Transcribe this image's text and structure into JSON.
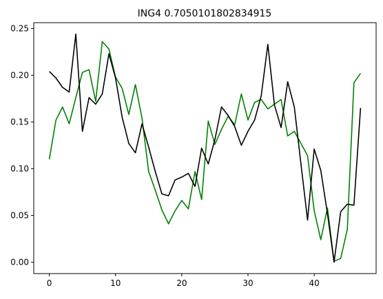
{
  "chart_data": {
    "type": "line",
    "title": "ING4 0.7050101802834915",
    "xlabel": "",
    "ylabel": "",
    "xlim": [
      -2.35,
      49.35
    ],
    "ylim": [
      -0.0122,
      0.2562
    ],
    "xticks": [
      0,
      10,
      20,
      30,
      40
    ],
    "yticks": [
      0.0,
      0.05,
      0.1,
      0.15,
      0.2,
      0.25
    ],
    "ytick_labels": [
      "0.00",
      "0.05",
      "0.10",
      "0.15",
      "0.20",
      "0.25"
    ],
    "grid": false,
    "x": [
      0,
      1,
      2,
      3,
      4,
      5,
      6,
      7,
      8,
      9,
      10,
      11,
      12,
      13,
      14,
      15,
      16,
      17,
      18,
      19,
      20,
      21,
      22,
      23,
      24,
      25,
      26,
      27,
      28,
      29,
      30,
      31,
      32,
      33,
      34,
      35,
      36,
      37,
      38,
      39,
      40,
      41,
      42,
      43,
      44,
      45,
      46,
      47
    ],
    "series": [
      {
        "color": "#008000",
        "values": [
          0.11,
          0.152,
          0.166,
          0.148,
          0.176,
          0.203,
          0.206,
          0.172,
          0.236,
          0.228,
          0.198,
          0.186,
          0.158,
          0.19,
          0.154,
          0.097,
          0.077,
          0.056,
          0.041,
          0.055,
          0.066,
          0.057,
          0.097,
          0.067,
          0.151,
          0.126,
          0.142,
          0.156,
          0.147,
          0.18,
          0.152,
          0.171,
          0.174,
          0.164,
          0.169,
          0.174,
          0.135,
          0.14,
          0.127,
          0.114,
          0.055,
          0.024,
          0.058,
          0.001,
          0.004,
          0.035,
          0.192,
          0.202
        ]
      },
      {
        "color": "#000000",
        "values": [
          0.204,
          0.197,
          0.187,
          0.182,
          0.244,
          0.14,
          0.176,
          0.169,
          0.18,
          0.223,
          0.197,
          0.155,
          0.127,
          0.117,
          0.148,
          0.123,
          0.097,
          0.073,
          0.071,
          0.088,
          0.091,
          0.095,
          0.081,
          0.122,
          0.105,
          0.131,
          0.166,
          0.157,
          0.145,
          0.125,
          0.14,
          0.152,
          0.178,
          0.233,
          0.168,
          0.144,
          0.193,
          0.166,
          0.105,
          0.045,
          0.121,
          0.098,
          0.052,
          0.0,
          0.054,
          0.062,
          0.061,
          0.165
        ]
      }
    ]
  }
}
